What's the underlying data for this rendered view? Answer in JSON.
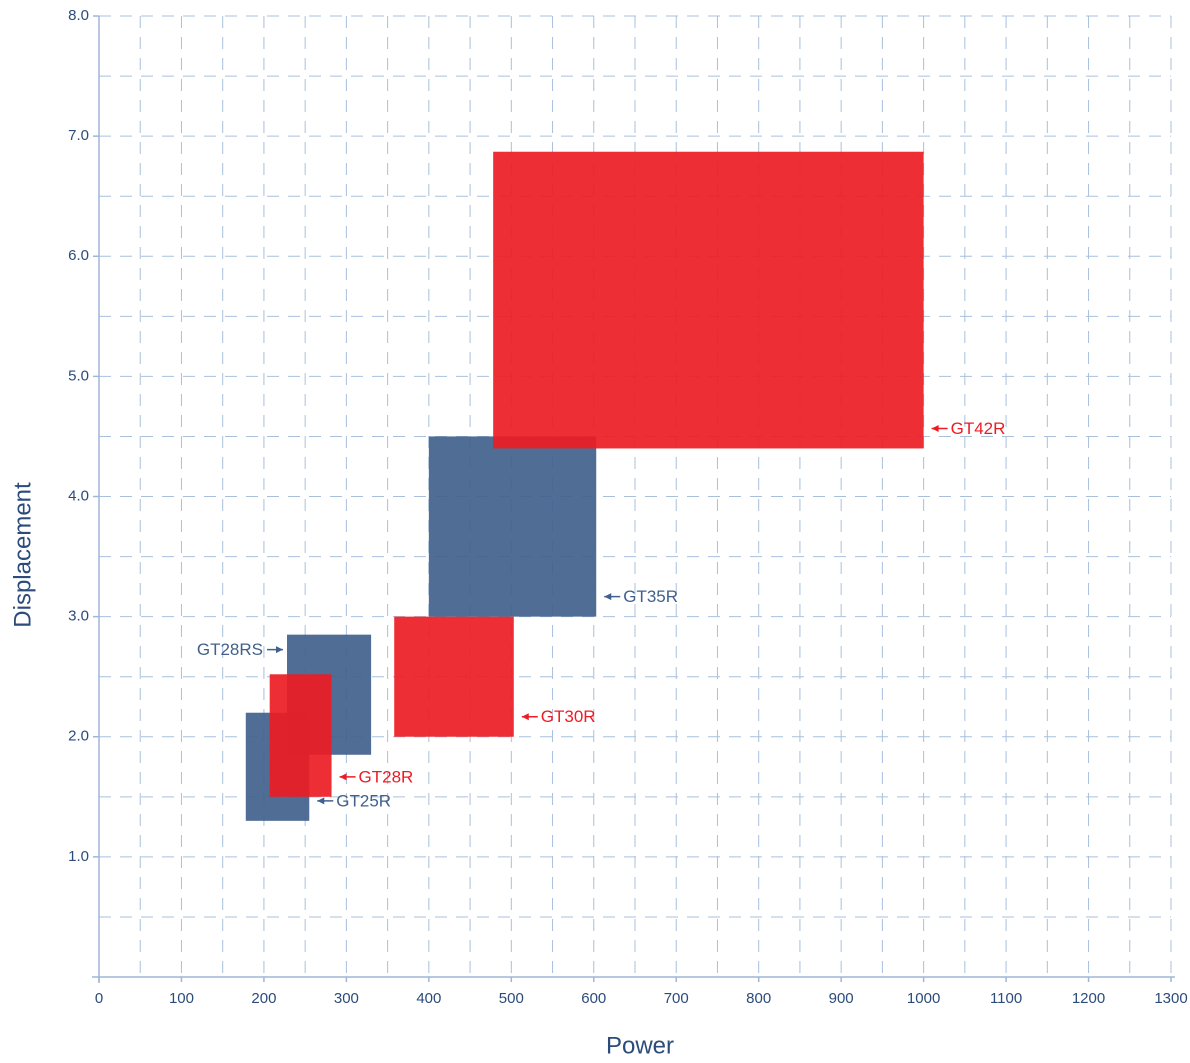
{
  "chart_data": {
    "type": "range-rect",
    "x_label": "Power",
    "y_label": "Displacement",
    "xlim": [
      0,
      1300
    ],
    "ylim": [
      0,
      8
    ],
    "xticks": [
      0,
      100,
      200,
      300,
      400,
      500,
      600,
      700,
      800,
      900,
      1000,
      1100,
      1200,
      1300
    ],
    "yticks": [
      {
        "value": 1,
        "label": "1.0"
      },
      {
        "value": 2,
        "label": "2.0"
      },
      {
        "value": 3,
        "label": "3.0"
      },
      {
        "value": 4,
        "label": "4.0"
      },
      {
        "value": 5,
        "label": "5.0"
      },
      {
        "value": 6,
        "label": "6.0"
      },
      {
        "value": 7,
        "label": "7.0"
      },
      {
        "value": 8,
        "label": "8.0"
      }
    ],
    "xminorticks": [
      50,
      150,
      250,
      350,
      450,
      550,
      650,
      750,
      850,
      950,
      1050,
      1150,
      1250
    ],
    "yminorticks": [
      0.5,
      1.5,
      2.5,
      3.5,
      4.5,
      5.5,
      6.5,
      7.5
    ],
    "grid": true,
    "series": [
      {
        "name": "GT25R",
        "color": "#41618c",
        "x": [
          178,
          255
        ],
        "y": [
          1.3,
          2.2
        ],
        "label_side": "right"
      },
      {
        "name": "GT28RS",
        "color": "#41618c",
        "x": [
          228,
          330
        ],
        "y": [
          1.85,
          2.85
        ],
        "label_side": "left"
      },
      {
        "name": "GT28R",
        "color": "#ed1c24",
        "x": [
          207,
          282
        ],
        "y": [
          1.5,
          2.52
        ],
        "label_side": "right"
      },
      {
        "name": "GT30R",
        "color": "#ed1c24",
        "x": [
          358,
          503
        ],
        "y": [
          2.0,
          3.0
        ],
        "label_side": "right"
      },
      {
        "name": "GT35R",
        "color": "#41618c",
        "x": [
          400,
          603
        ],
        "y": [
          3.0,
          4.5
        ],
        "label_side": "right"
      },
      {
        "name": "GT42R",
        "color": "#ed1c24",
        "x": [
          478,
          1000
        ],
        "y": [
          4.4,
          6.87
        ],
        "label_side": "right"
      }
    ]
  }
}
